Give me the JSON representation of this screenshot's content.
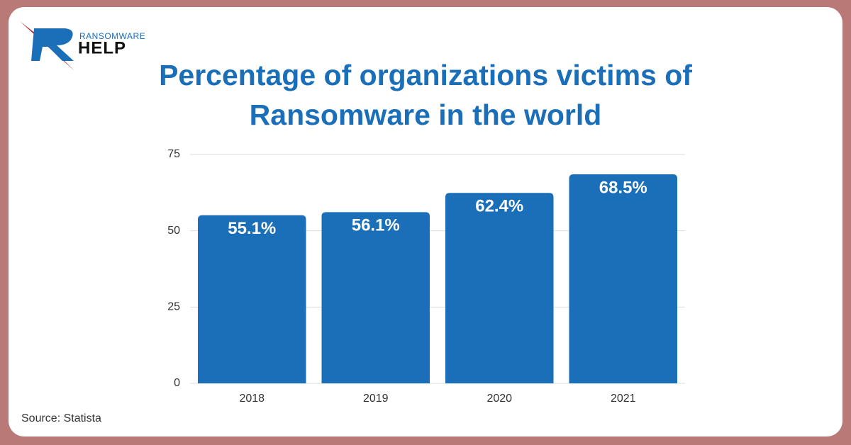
{
  "logo": {
    "small": "RANSOMWARE",
    "big": "HELP"
  },
  "source": "Source: Statista",
  "chart_data": {
    "type": "bar",
    "title": "Percentage of organizations victims of Ransomware in the world",
    "categories": [
      "2018",
      "2019",
      "2020",
      "2021"
    ],
    "values": [
      55.1,
      56.1,
      62.4,
      68.5
    ],
    "value_labels": [
      "55.1%",
      "56.1%",
      "62.4%",
      "68.5%"
    ],
    "color": "#1a6fb8",
    "ylim": [
      0,
      75
    ],
    "yticks": [
      0,
      25,
      50,
      75
    ],
    "grid": true
  }
}
